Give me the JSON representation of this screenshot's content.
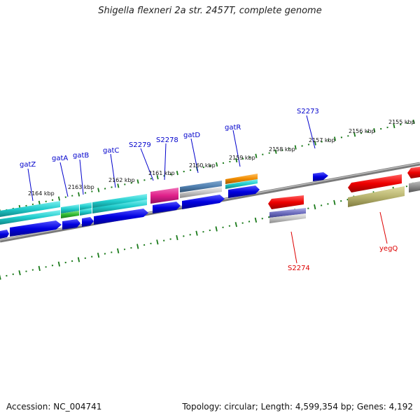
{
  "title": "Shigella flexneri 2a str. 2457T, complete genome",
  "footer": {
    "accession": "Accession: NC_004741",
    "summary": "Topology: circular; Length: 4,599,354 bp; Genes: 4,192"
  },
  "kbp_labels": [
    "2164 kbp",
    "2163 kbp",
    "2162 kbp",
    "2161 kbp",
    "2160 kbp",
    "2159 kbp",
    "2158 kbp",
    "2157 kbp",
    "2156 kbp",
    "2155 kbp"
  ],
  "gene_labels_top": [
    "gatZ",
    "gatA",
    "gatB",
    "gatC",
    "S2279",
    "S2278",
    "gatD",
    "gatR",
    "S2273"
  ],
  "gene_labels_bottom": [
    "S2274",
    "yegQ"
  ],
  "colors": {
    "label_blue": "#0000cc",
    "label_red": "#dd0000",
    "tick_green": "#1a7a1a",
    "backbone_grey": "#8a8a8a",
    "cds_blue": "#0000e0",
    "cds_cyan": "#20cccc",
    "gene_red": "#ee0000",
    "gene_pink": "#e0208a",
    "gene_orange": "#f08c00",
    "gene_olive": "#b8b470",
    "gene_green": "#33bb33",
    "gene_purple": "#7070c0",
    "gene_steel": "#5080b0"
  }
}
